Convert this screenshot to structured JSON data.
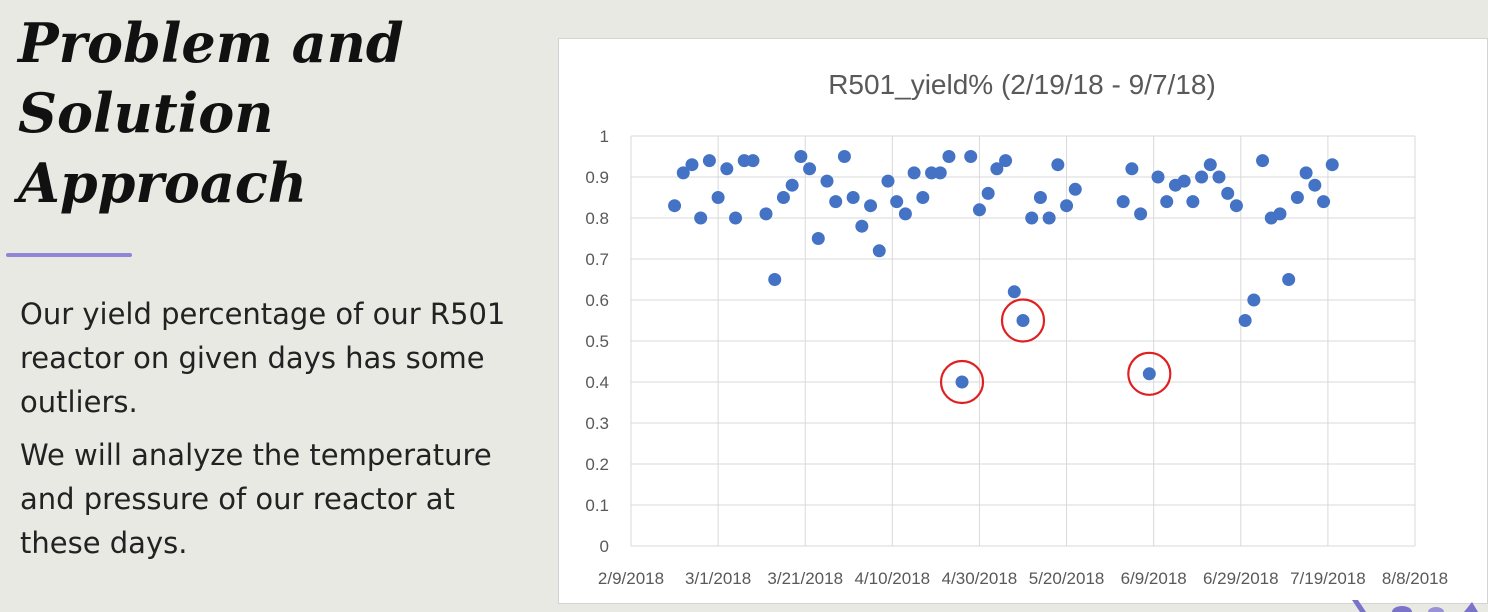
{
  "slide": {
    "title_lines": [
      "Problem and",
      "Solution",
      "Approach"
    ],
    "paragraphs": [
      "Our yield percentage of our R501 reactor on given days has some outliers.",
      "We will analyze the temperature and pressure of our reactor at these days."
    ],
    "accent_color": "#8f86d6"
  },
  "chart_data": {
    "type": "scatter",
    "title": "R501_yield% (2/19/18 - 9/7/18)",
    "xlabel": "",
    "ylabel": "",
    "ylim": [
      0,
      1
    ],
    "yticks": [
      0,
      0.1,
      0.2,
      0.3,
      0.4,
      0.5,
      0.6,
      0.7,
      0.8,
      0.9,
      1
    ],
    "ytick_labels": [
      "0",
      "0.1",
      "0.2",
      "0.3",
      "0.4",
      "0.5",
      "0.6",
      "0.7",
      "0.8",
      "0.9",
      "1"
    ],
    "xlim": [
      "2018-02-09",
      "2018-08-08"
    ],
    "xticks": [
      "2018-02-09",
      "2018-03-01",
      "2018-03-21",
      "2018-04-10",
      "2018-04-30",
      "2018-05-20",
      "2018-06-09",
      "2018-06-29",
      "2018-07-19",
      "2018-08-08"
    ],
    "xtick_labels": [
      "2/9/2018",
      "3/1/2018",
      "3/21/2018",
      "4/10/2018",
      "4/30/2018",
      "5/20/2018",
      "6/9/2018",
      "6/29/2018",
      "7/19/2018",
      "8/8/2018"
    ],
    "grid": "horizontal",
    "marker_color": "#4472c4",
    "outlier_highlight_color": "#e02020",
    "points": [
      {
        "x": "2018-02-19",
        "y": 0.83
      },
      {
        "x": "2018-02-21",
        "y": 0.91
      },
      {
        "x": "2018-02-23",
        "y": 0.93
      },
      {
        "x": "2018-02-25",
        "y": 0.8
      },
      {
        "x": "2018-02-27",
        "y": 0.94
      },
      {
        "x": "2018-03-01",
        "y": 0.85
      },
      {
        "x": "2018-03-03",
        "y": 0.92
      },
      {
        "x": "2018-03-05",
        "y": 0.8
      },
      {
        "x": "2018-03-07",
        "y": 0.94
      },
      {
        "x": "2018-03-09",
        "y": 0.94
      },
      {
        "x": "2018-03-12",
        "y": 0.81
      },
      {
        "x": "2018-03-14",
        "y": 0.65
      },
      {
        "x": "2018-03-16",
        "y": 0.85
      },
      {
        "x": "2018-03-18",
        "y": 0.88
      },
      {
        "x": "2018-03-20",
        "y": 0.95
      },
      {
        "x": "2018-03-22",
        "y": 0.92
      },
      {
        "x": "2018-03-24",
        "y": 0.75
      },
      {
        "x": "2018-03-26",
        "y": 0.89
      },
      {
        "x": "2018-03-28",
        "y": 0.84
      },
      {
        "x": "2018-03-30",
        "y": 0.95
      },
      {
        "x": "2018-04-01",
        "y": 0.85
      },
      {
        "x": "2018-04-03",
        "y": 0.78
      },
      {
        "x": "2018-04-05",
        "y": 0.83
      },
      {
        "x": "2018-04-07",
        "y": 0.72
      },
      {
        "x": "2018-04-09",
        "y": 0.89
      },
      {
        "x": "2018-04-11",
        "y": 0.84
      },
      {
        "x": "2018-04-13",
        "y": 0.81
      },
      {
        "x": "2018-04-15",
        "y": 0.91
      },
      {
        "x": "2018-04-17",
        "y": 0.85
      },
      {
        "x": "2018-04-19",
        "y": 0.91
      },
      {
        "x": "2018-04-21",
        "y": 0.91
      },
      {
        "x": "2018-04-23",
        "y": 0.95
      },
      {
        "x": "2018-04-26",
        "y": 0.4,
        "outlier": true
      },
      {
        "x": "2018-04-28",
        "y": 0.95
      },
      {
        "x": "2018-04-30",
        "y": 0.82
      },
      {
        "x": "2018-05-02",
        "y": 0.86
      },
      {
        "x": "2018-05-04",
        "y": 0.92
      },
      {
        "x": "2018-05-06",
        "y": 0.94
      },
      {
        "x": "2018-05-08",
        "y": 0.62
      },
      {
        "x": "2018-05-10",
        "y": 0.55,
        "outlier": true
      },
      {
        "x": "2018-05-12",
        "y": 0.8
      },
      {
        "x": "2018-05-14",
        "y": 0.85
      },
      {
        "x": "2018-05-16",
        "y": 0.8
      },
      {
        "x": "2018-05-18",
        "y": 0.93
      },
      {
        "x": "2018-05-20",
        "y": 0.83
      },
      {
        "x": "2018-05-22",
        "y": 0.87
      },
      {
        "x": "2018-06-02",
        "y": 0.84
      },
      {
        "x": "2018-06-04",
        "y": 0.92
      },
      {
        "x": "2018-06-06",
        "y": 0.81
      },
      {
        "x": "2018-06-08",
        "y": 0.42,
        "outlier": true
      },
      {
        "x": "2018-06-10",
        "y": 0.9
      },
      {
        "x": "2018-06-12",
        "y": 0.84
      },
      {
        "x": "2018-06-14",
        "y": 0.88
      },
      {
        "x": "2018-06-16",
        "y": 0.89
      },
      {
        "x": "2018-06-18",
        "y": 0.84
      },
      {
        "x": "2018-06-20",
        "y": 0.9
      },
      {
        "x": "2018-06-22",
        "y": 0.93
      },
      {
        "x": "2018-06-24",
        "y": 0.9
      },
      {
        "x": "2018-06-26",
        "y": 0.86
      },
      {
        "x": "2018-06-28",
        "y": 0.83
      },
      {
        "x": "2018-06-30",
        "y": 0.55
      },
      {
        "x": "2018-07-02",
        "y": 0.6
      },
      {
        "x": "2018-07-04",
        "y": 0.94
      },
      {
        "x": "2018-07-06",
        "y": 0.8
      },
      {
        "x": "2018-07-08",
        "y": 0.81
      },
      {
        "x": "2018-07-10",
        "y": 0.65
      },
      {
        "x": "2018-07-12",
        "y": 0.85
      },
      {
        "x": "2018-07-14",
        "y": 0.91
      },
      {
        "x": "2018-07-16",
        "y": 0.88
      },
      {
        "x": "2018-07-18",
        "y": 0.84
      },
      {
        "x": "2018-07-20",
        "y": 0.93
      }
    ]
  }
}
